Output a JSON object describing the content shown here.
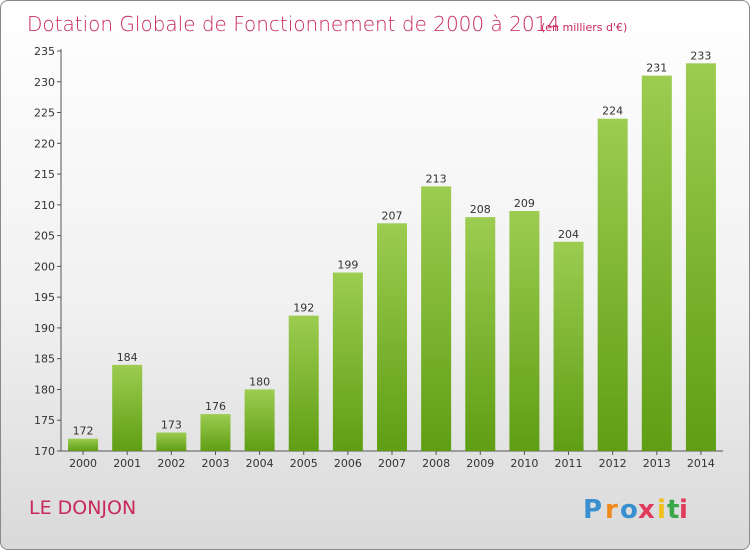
{
  "chart_data": {
    "type": "bar",
    "title": "Dotation Globale de Fonctionnement de 2000 à 2014",
    "subtitle": "(en milliers d'€)",
    "categories": [
      "2000",
      "2001",
      "2002",
      "2003",
      "2004",
      "2005",
      "2006",
      "2007",
      "2008",
      "2009",
      "2010",
      "2011",
      "2012",
      "2013",
      "2014"
    ],
    "values": [
      172,
      184,
      173,
      176,
      180,
      192,
      199,
      207,
      213,
      208,
      209,
      204,
      224,
      231,
      233
    ],
    "ylim": [
      170,
      235
    ],
    "yticks": [
      170,
      175,
      180,
      185,
      190,
      195,
      200,
      205,
      210,
      215,
      220,
      225,
      230,
      235
    ],
    "xlabel": "",
    "ylabel": "",
    "grid": false,
    "bar_color_top": "#9ccc50",
    "bar_color_bottom": "#5f9e14"
  },
  "commune": "LE DONJON",
  "logo": {
    "letters": [
      "P",
      "r",
      "o",
      "x",
      "i",
      "t",
      "i"
    ],
    "colors": [
      "#3a8fd0",
      "#f08a1c",
      "#3a8fd0",
      "#e03a5c",
      "#f0c018",
      "#3aa84a",
      "#e03a5c"
    ]
  }
}
